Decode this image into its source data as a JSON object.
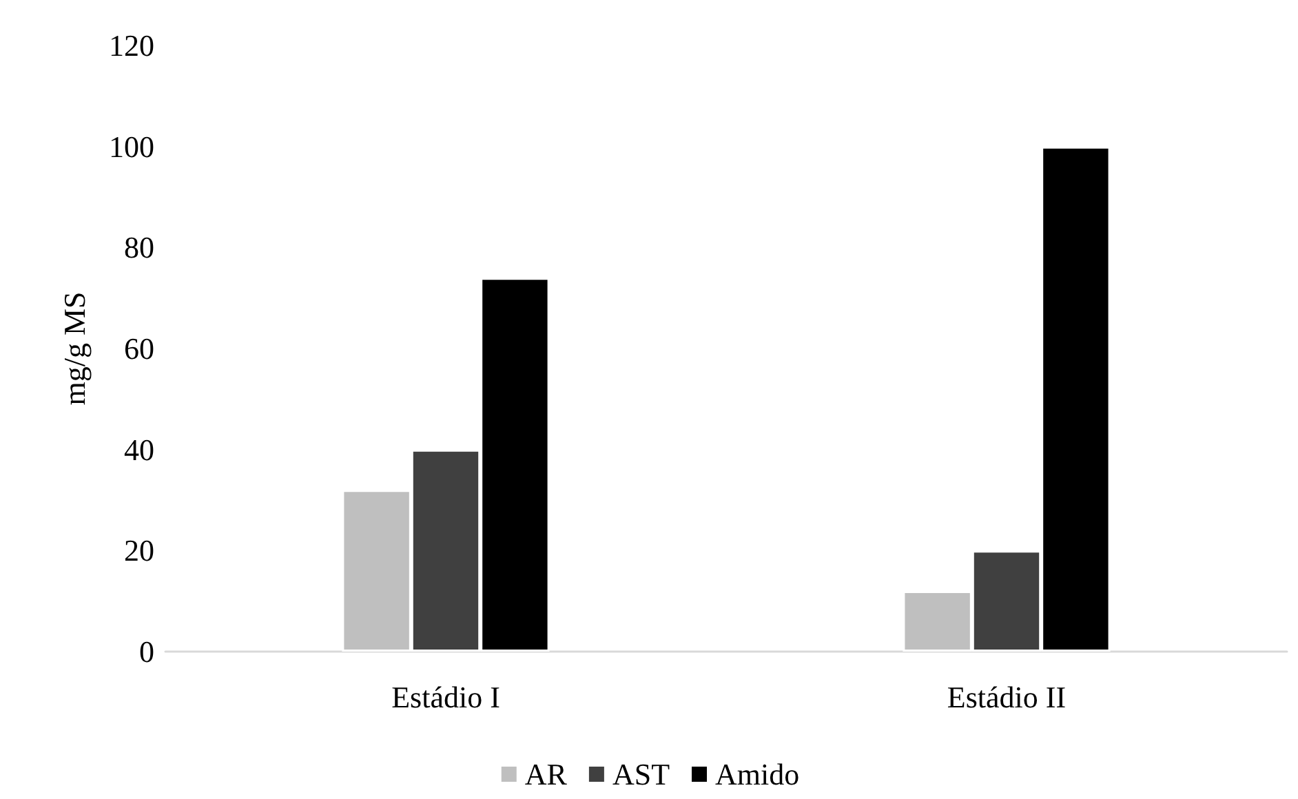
{
  "chart_data": {
    "type": "bar",
    "ylabel": "mg/g MS",
    "categories": [
      "Estádio I",
      "Estádio II"
    ],
    "series": [
      {
        "name": "AR",
        "color": "#bfbfbf",
        "values": [
          32,
          12
        ]
      },
      {
        "name": "AST",
        "color": "#404040",
        "values": [
          40,
          20
        ]
      },
      {
        "name": "Amido",
        "color": "#000000",
        "values": [
          74,
          100
        ]
      }
    ],
    "ylim": [
      0,
      120
    ],
    "yticks": [
      0,
      20,
      40,
      60,
      80,
      100,
      120
    ],
    "grid": false,
    "legend": "bottom"
  }
}
